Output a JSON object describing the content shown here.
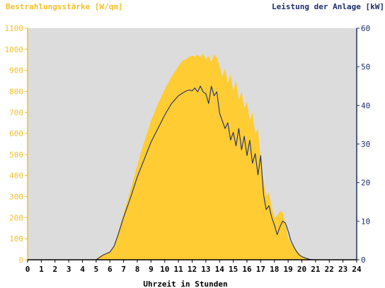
{
  "chart_data": {
    "type": "area",
    "title_left": "Bestrahlungsstärke [W/qm]",
    "title_right": "Leistung der Anlage [kW]",
    "xlabel": "Uhrzeit in Stunden",
    "xlim": [
      0,
      24
    ],
    "y_left_lim": [
      0,
      1100
    ],
    "y_right_lim": [
      0,
      60
    ],
    "x_ticks": [
      "0",
      "1",
      "2",
      "3",
      "4",
      "5",
      "6",
      "7",
      "8",
      "9",
      "10",
      "11",
      "12",
      "13",
      "14",
      "15",
      "16",
      "17",
      "18",
      "19",
      "20",
      "21",
      "22",
      "23",
      "24"
    ],
    "y_left_ticks": [
      "0",
      "100",
      "200",
      "300",
      "400",
      "500",
      "600",
      "700",
      "800",
      "900",
      "1000",
      "1100"
    ],
    "y_right_ticks": [
      "0",
      "10",
      "20",
      "30",
      "40",
      "50",
      "60"
    ],
    "colors": {
      "plot_bg": "#dcdcdc",
      "irradiance_fill": "#ffcc33",
      "left_axis_text": "#f6c02a",
      "right_axis_text": "#1f2f6b",
      "power_line": "#1f2f6b"
    },
    "series": [
      {
        "name": "Bestrahlungsstärke [W/qm]",
        "axis": "left",
        "style": "area",
        "x": [
          0,
          5,
          5.2,
          5.5,
          6,
          6.3,
          6.6,
          7,
          7.5,
          8,
          8.5,
          9,
          9.5,
          10,
          10.5,
          11,
          11.3,
          11.6,
          11.8,
          12,
          12.2,
          12.4,
          12.6,
          12.8,
          13,
          13.2,
          13.4,
          13.6,
          13.8,
          14,
          14.2,
          14.4,
          14.6,
          14.8,
          15,
          15.2,
          15.4,
          15.6,
          15.8,
          16,
          16.2,
          16.4,
          16.6,
          16.8,
          17,
          17.2,
          17.4,
          17.6,
          17.8,
          18,
          18.2,
          18.4,
          18.6,
          18.8,
          19,
          19.2,
          19.4,
          19.6,
          19.8,
          20,
          20.3,
          20.6,
          21,
          24
        ],
        "values": [
          0,
          0,
          15,
          25,
          40,
          70,
          130,
          220,
          330,
          450,
          560,
          660,
          740,
          810,
          870,
          920,
          945,
          955,
          965,
          970,
          965,
          975,
          960,
          980,
          950,
          970,
          940,
          975,
          960,
          920,
          870,
          910,
          840,
          880,
          800,
          850,
          760,
          800,
          720,
          750,
          660,
          700,
          600,
          620,
          480,
          380,
          300,
          320,
          250,
          200,
          210,
          230,
          225,
          170,
          110,
          80,
          60,
          45,
          30,
          18,
          8,
          3,
          0,
          0
        ]
      },
      {
        "name": "Leistung der Anlage [kW]",
        "axis": "right",
        "style": "line",
        "x": [
          0,
          5,
          5.2,
          5.5,
          6,
          6.3,
          6.6,
          7,
          7.5,
          8,
          8.5,
          9,
          9.5,
          10,
          10.5,
          11,
          11.3,
          11.6,
          11.8,
          12,
          12.2,
          12.4,
          12.6,
          12.8,
          13,
          13.2,
          13.4,
          13.6,
          13.8,
          14,
          14.2,
          14.4,
          14.6,
          14.8,
          15,
          15.2,
          15.4,
          15.6,
          15.8,
          16,
          16.2,
          16.4,
          16.6,
          16.8,
          17,
          17.2,
          17.4,
          17.6,
          17.8,
          18,
          18.2,
          18.4,
          18.6,
          18.8,
          19,
          19.2,
          19.4,
          19.6,
          19.8,
          20,
          20.3,
          20.6,
          21,
          24
        ],
        "values": [
          0,
          0,
          0.5,
          1.2,
          2,
          3.5,
          6.5,
          11,
          16,
          21.5,
          26,
          30.5,
          34,
          37.5,
          40.5,
          42.5,
          43.2,
          43.8,
          44,
          43.8,
          44.5,
          43.5,
          45,
          43.5,
          43,
          40.5,
          45,
          42.5,
          43.5,
          38,
          36,
          34,
          35.5,
          31,
          33,
          29.5,
          34,
          28.5,
          32,
          27,
          31,
          25,
          27.5,
          22,
          27,
          17,
          13,
          14,
          11,
          9,
          6.5,
          8.5,
          10,
          9.5,
          7.5,
          5,
          3.5,
          2.2,
          1.3,
          0.8,
          0.4,
          0.1,
          0,
          0
        ]
      }
    ]
  }
}
